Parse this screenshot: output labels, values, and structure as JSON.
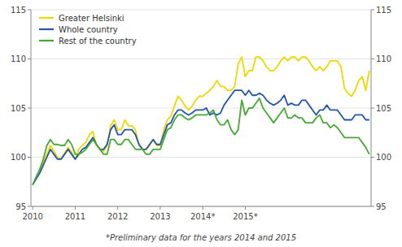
{
  "chart_data": {
    "type": "line",
    "annotations": [
      "*Preliminary data for the years 2014 and 2015"
    ],
    "categories": [
      "2010",
      null,
      null,
      null,
      null,
      null,
      null,
      null,
      null,
      null,
      null,
      null,
      "2011",
      null,
      null,
      null,
      null,
      null,
      null,
      null,
      null,
      null,
      null,
      null,
      "2012",
      null,
      null,
      null,
      null,
      null,
      null,
      null,
      null,
      null,
      null,
      null,
      "2013",
      null,
      null,
      null,
      null,
      null,
      null,
      null,
      null,
      null,
      null,
      null,
      "2014*",
      null,
      null,
      null,
      null,
      null,
      null,
      null,
      null,
      null,
      null,
      null,
      "2015*",
      null,
      null,
      null,
      null,
      null,
      null,
      null,
      null,
      null,
      null,
      null,
      null,
      null,
      null,
      null,
      null,
      null,
      null,
      null,
      null,
      null,
      null,
      null,
      null,
      null,
      null,
      null,
      null,
      null,
      null,
      null,
      null,
      null,
      null,
      null
    ],
    "series": [
      {
        "name": "Greater Helsinki",
        "color": "#eed800",
        "values": [
          97.2,
          97.8,
          98.6,
          99.5,
          100.3,
          101.2,
          100.6,
          100.0,
          99.8,
          100.4,
          101.0,
          100.5,
          99.8,
          100.8,
          101.2,
          101.5,
          102.3,
          102.6,
          101.2,
          100.8,
          100.6,
          101.2,
          103.2,
          103.8,
          102.8,
          102.8,
          103.8,
          103.2,
          103.2,
          102.8,
          101.2,
          100.8,
          100.8,
          101.2,
          101.8,
          101.2,
          101.2,
          102.8,
          103.8,
          104.2,
          105.2,
          106.2,
          105.8,
          105.2,
          104.8,
          105.2,
          105.8,
          106.2,
          106.2,
          106.5,
          106.8,
          107.2,
          107.8,
          107.2,
          107.2,
          106.8,
          106.8,
          107.2,
          109.5,
          110.2,
          108.2,
          108.8,
          108.8,
          110.2,
          110.2,
          109.8,
          109.2,
          108.8,
          108.8,
          109.2,
          109.8,
          110.2,
          109.8,
          110.2,
          110.2,
          109.8,
          110.2,
          110.2,
          109.8,
          109.2,
          108.8,
          109.2,
          108.8,
          109.2,
          109.8,
          109.8,
          109.8,
          109.2,
          107.0,
          106.5,
          106.2,
          106.8,
          107.8,
          108.2,
          106.8,
          108.8
        ]
      },
      {
        "name": "Whole country",
        "color": "#2255aa",
        "values": [
          97.2,
          97.8,
          98.4,
          99.2,
          100.0,
          100.8,
          100.3,
          99.8,
          99.8,
          100.3,
          100.8,
          100.3,
          99.8,
          100.3,
          100.8,
          101.0,
          101.5,
          102.0,
          101.3,
          100.8,
          100.8,
          101.3,
          102.8,
          103.3,
          102.3,
          102.3,
          102.8,
          102.8,
          102.8,
          102.3,
          101.3,
          100.8,
          100.8,
          101.3,
          101.8,
          101.3,
          101.3,
          102.3,
          103.3,
          103.5,
          104.3,
          104.8,
          104.8,
          104.5,
          104.3,
          104.5,
          104.8,
          104.8,
          104.8,
          105.0,
          104.3,
          104.5,
          104.3,
          104.5,
          105.3,
          105.8,
          106.3,
          106.8,
          106.8,
          106.8,
          106.3,
          106.8,
          106.3,
          106.3,
          106.5,
          106.3,
          105.8,
          105.5,
          105.3,
          105.5,
          105.8,
          106.3,
          105.3,
          105.5,
          105.3,
          105.3,
          105.8,
          105.8,
          105.3,
          104.8,
          104.3,
          104.8,
          104.8,
          105.3,
          104.8,
          104.8,
          104.8,
          104.3,
          103.8,
          103.8,
          103.8,
          104.3,
          104.3,
          104.3,
          103.8,
          103.8
        ]
      },
      {
        "name": "Rest of the country",
        "color": "#44aa33",
        "values": [
          97.2,
          98.0,
          98.8,
          99.8,
          101.2,
          101.8,
          101.3,
          101.3,
          101.2,
          101.2,
          101.8,
          101.3,
          100.3,
          100.3,
          100.5,
          100.8,
          101.3,
          101.8,
          101.3,
          100.8,
          100.3,
          100.3,
          101.8,
          101.8,
          101.3,
          101.3,
          101.8,
          101.8,
          101.3,
          100.8,
          100.8,
          100.8,
          100.3,
          100.3,
          100.8,
          100.8,
          100.8,
          101.8,
          102.8,
          103.0,
          103.8,
          104.3,
          104.3,
          104.0,
          103.8,
          104.0,
          104.3,
          104.3,
          104.3,
          104.3,
          104.5,
          104.8,
          103.8,
          103.3,
          103.3,
          103.8,
          102.8,
          102.3,
          102.8,
          105.8,
          104.3,
          105.0,
          105.0,
          105.5,
          106.0,
          105.0,
          104.5,
          104.0,
          103.5,
          104.0,
          104.5,
          105.0,
          104.0,
          104.0,
          104.3,
          104.0,
          104.0,
          103.5,
          103.5,
          103.5,
          104.0,
          104.3,
          103.5,
          103.5,
          103.0,
          103.3,
          103.0,
          102.5,
          102.0,
          102.0,
          102.0,
          102.0,
          102.0,
          101.5,
          101.0,
          100.3
        ]
      }
    ],
    "ylim": [
      95,
      115
    ],
    "yticks": [
      95,
      100,
      105,
      110,
      115
    ],
    "y2lim": [
      95,
      115
    ],
    "y2ticks": [
      95,
      100,
      105,
      110,
      115
    ],
    "grid": true,
    "legend": "upper-left"
  }
}
